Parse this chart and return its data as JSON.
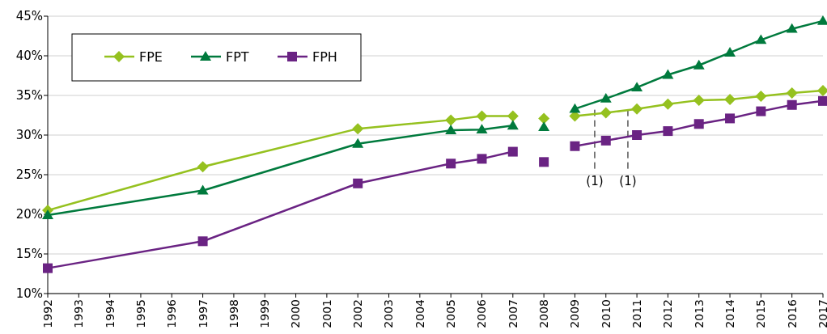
{
  "chart_data": {
    "type": "line",
    "x": [
      1992,
      1997,
      2002,
      2005,
      2006,
      2007,
      2007.5,
      2008,
      2008.5,
      2009,
      2010,
      2011,
      2012,
      2013,
      2014,
      2015,
      2016,
      2017
    ],
    "series": [
      {
        "name": "FPE",
        "color": "#95c11f",
        "marker": "diamond",
        "values": [
          20.5,
          26.0,
          30.8,
          31.9,
          32.4,
          32.4,
          null,
          32.1,
          null,
          32.4,
          32.8,
          33.3,
          33.9,
          34.4,
          34.5,
          34.9,
          35.3,
          35.6
        ]
      },
      {
        "name": "FPT",
        "color": "#007a3d",
        "marker": "triangle",
        "values": [
          19.9,
          23.0,
          28.9,
          30.6,
          30.7,
          31.2,
          null,
          31.0,
          null,
          33.3,
          34.6,
          36.0,
          37.6,
          38.8,
          40.4,
          42.0,
          43.4,
          44.4
        ]
      },
      {
        "name": "FPH",
        "color": "#6a2383",
        "marker": "square",
        "values": [
          13.2,
          16.6,
          23.9,
          26.4,
          27.0,
          27.9,
          null,
          26.6,
          null,
          28.6,
          29.3,
          30.0,
          30.5,
          31.4,
          32.1,
          33.0,
          33.8,
          34.3
        ]
      }
    ],
    "xlim": [
      1992,
      2017
    ],
    "xticks": [
      1992,
      1993,
      1994,
      1995,
      1996,
      1997,
      1998,
      1999,
      2000,
      2001,
      2002,
      2003,
      2004,
      2005,
      2006,
      2007,
      2008,
      2009,
      2010,
      2011,
      2012,
      2013,
      2014,
      2015,
      2016,
      2017
    ],
    "ylim": [
      10,
      45
    ],
    "yticks": [
      {
        "value": 10,
        "label": "10%"
      },
      {
        "value": 15,
        "label": "15%"
      },
      {
        "value": 20,
        "label": "20%"
      },
      {
        "value": 25,
        "label": "25%"
      },
      {
        "value": 30,
        "label": "30%"
      },
      {
        "value": 35,
        "label": "35%"
      },
      {
        "value": 40,
        "label": "40%"
      },
      {
        "value": 45,
        "label": "45%"
      }
    ],
    "ref_lines": [
      {
        "axis": "x",
        "value": 2009.64,
        "line_style": "dashed"
      },
      {
        "axis": "x",
        "value": 2010.71,
        "line_style": "dashed"
      }
    ],
    "annotations": [
      "(1)",
      "(1)"
    ],
    "grid": "y",
    "legend": "top left",
    "line_style": "solid"
  }
}
